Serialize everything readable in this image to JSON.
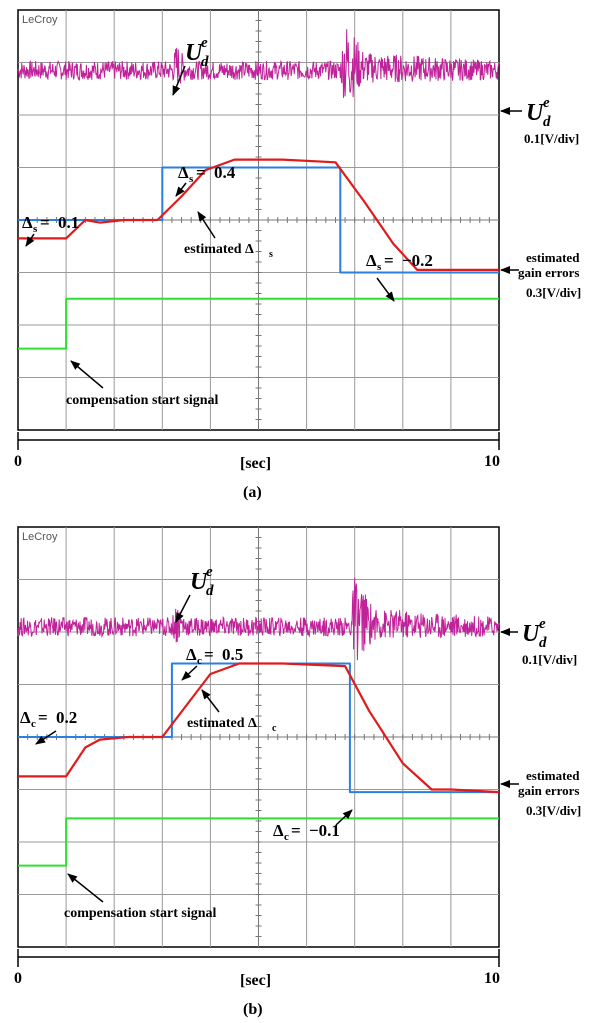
{
  "figure": {
    "x_axis_label": "[sec]",
    "scope_brand": "LeCroy"
  },
  "panels": [
    {
      "caption": "(a)",
      "param_symbol": "Δ",
      "param_sub": "s",
      "param_values": [
        "0.1",
        "0.4",
        "−0.2"
      ],
      "ud_label": "U",
      "ud_sup": "e",
      "ud_sub": "d",
      "ud_scale": "0.1[V/div]",
      "gain_label_1": "estimated",
      "gain_label_2": "gain errors",
      "gain_scale": "0.3[V/div]",
      "estimated_label": "estimated Δ",
      "start_label": "compensation start signal"
    },
    {
      "caption": "(b)",
      "param_symbol": "Δ",
      "param_sub": "c",
      "param_values": [
        "0.2",
        "0.5",
        "−0.1"
      ],
      "ud_label": "U",
      "ud_sup": "e",
      "ud_sub": "d",
      "ud_scale": "0.1[V/div]",
      "gain_label_1": "estimated",
      "gain_label_2": "gain errors",
      "gain_scale": "0.3[V/div]",
      "estimated_label": "estimated Δ",
      "start_label": "compensation start signal"
    }
  ],
  "chart_data": [
    {
      "type": "line",
      "title": "(a)",
      "xlabel": "[sec]",
      "x_ticks": [
        "0",
        "10"
      ],
      "xlim": [
        0,
        10
      ],
      "units": "divisions",
      "ylim": [
        -4,
        4
      ],
      "series": [
        {
          "name": "U_d^e",
          "color": "#c0229a",
          "x": [
            0,
            3.2,
            3.3,
            3.5,
            6.7,
            6.8,
            7.2,
            10
          ],
          "y": [
            2.85,
            2.85,
            2.95,
            2.85,
            2.85,
            3.0,
            2.9,
            2.85
          ],
          "noise_amplitude": [
            0.18,
            0.18,
            0.45,
            0.18,
            0.18,
            0.85,
            0.3,
            0.18
          ]
        },
        {
          "name": "Δs",
          "color": "#2b7fe0",
          "x": [
            0,
            3.0,
            3.0,
            6.7,
            6.7,
            10
          ],
          "y": [
            0.0,
            0.0,
            1.0,
            1.0,
            -1.0,
            -1.0
          ]
        },
        {
          "name": "estimated Δs",
          "color": "#e01b1b",
          "x": [
            0,
            1.0,
            1.4,
            1.7,
            2.2,
            2.9,
            3.4,
            3.9,
            4.5,
            5.5,
            6.6,
            7.2,
            7.8,
            8.3,
            8.7,
            10
          ],
          "y": [
            -0.35,
            -0.35,
            0.0,
            -0.05,
            0.0,
            0.0,
            0.45,
            0.95,
            1.15,
            1.15,
            1.1,
            0.35,
            -0.45,
            -0.95,
            -0.95,
            -0.95
          ]
        },
        {
          "name": "compensation start signal",
          "color": "#2fe02f",
          "x": [
            0,
            1.0,
            1.0,
            10
          ],
          "y": [
            -2.45,
            -2.45,
            -1.5,
            -1.5
          ]
        }
      ]
    },
    {
      "type": "line",
      "title": "(b)",
      "xlabel": "[sec]",
      "x_ticks": [
        "0",
        "10"
      ],
      "xlim": [
        0,
        10
      ],
      "units": "divisions",
      "ylim": [
        -4,
        4
      ],
      "series": [
        {
          "name": "U_d^e",
          "color": "#c0229a",
          "x": [
            0,
            3.2,
            3.3,
            3.5,
            6.9,
            7.0,
            7.4,
            10
          ],
          "y": [
            2.1,
            2.1,
            2.2,
            2.1,
            2.1,
            2.25,
            2.15,
            2.1
          ],
          "noise_amplitude": [
            0.18,
            0.18,
            0.45,
            0.18,
            0.18,
            0.85,
            0.3,
            0.18
          ]
        },
        {
          "name": "Δc",
          "color": "#2b7fe0",
          "x": [
            0,
            3.2,
            3.2,
            6.9,
            6.9,
            10
          ],
          "y": [
            0.0,
            0.0,
            1.4,
            1.4,
            -1.05,
            -1.05
          ]
        },
        {
          "name": "estimated Δc",
          "color": "#e01b1b",
          "x": [
            0,
            1.0,
            1.4,
            1.7,
            2.3,
            3.0,
            3.5,
            4.0,
            4.6,
            5.5,
            6.8,
            7.3,
            8.0,
            8.6,
            9.0,
            10
          ],
          "y": [
            -0.75,
            -0.75,
            -0.2,
            -0.05,
            0.0,
            0.0,
            0.6,
            1.2,
            1.4,
            1.4,
            1.35,
            0.5,
            -0.5,
            -1.0,
            -1.0,
            -1.05
          ]
        },
        {
          "name": "compensation start signal",
          "color": "#2fe02f",
          "x": [
            0,
            1.0,
            1.0,
            10
          ],
          "y": [
            -2.45,
            -2.45,
            -1.55,
            -1.55
          ]
        }
      ]
    }
  ]
}
